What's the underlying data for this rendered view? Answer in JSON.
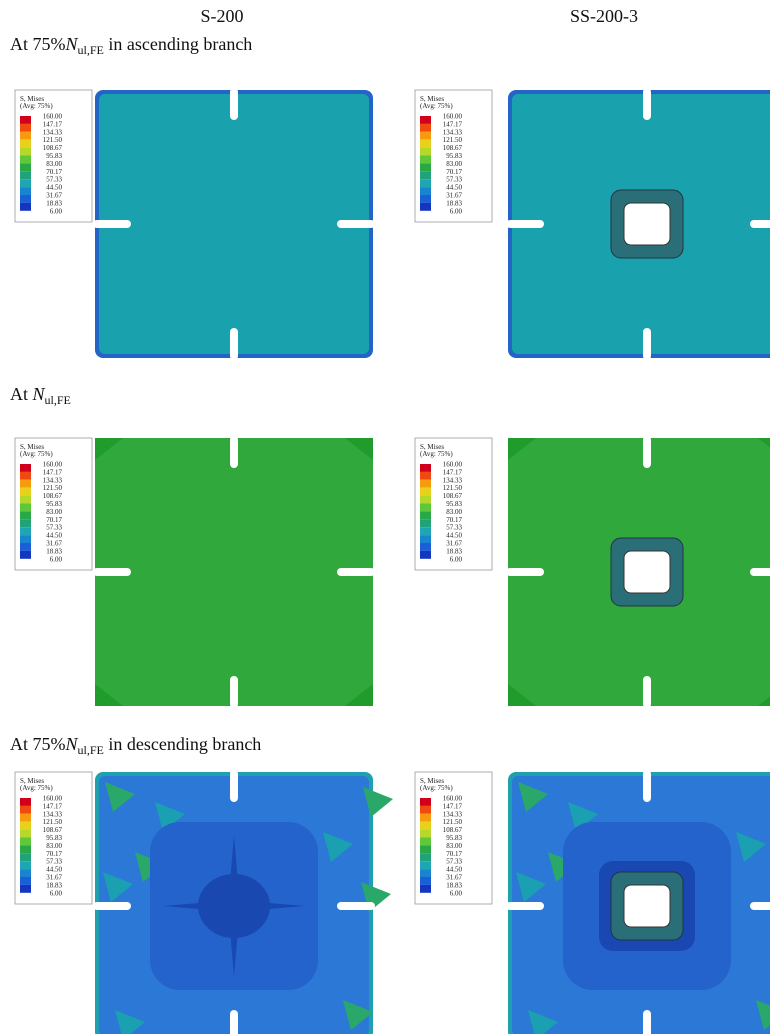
{
  "columns": [
    "S-200",
    "SS-200-3"
  ],
  "rows": [
    {
      "prefix": "At 75%",
      "symbol": "N",
      "subscript": "ul,FE",
      "suffix": " in ascending branch"
    },
    {
      "prefix": "At ",
      "symbol": "N",
      "subscript": "ul,FE"
    },
    {
      "prefix": "At 75%",
      "symbol": "N",
      "subscript": "ul,FE",
      "suffix": " in descending branch"
    }
  ],
  "legend": {
    "title": "S, Mises",
    "subtitle": "(Avg: 75%)",
    "levels": [
      "160.00",
      "147.17",
      "134.33",
      "121.50",
      "108.67",
      "95.83",
      "83.00",
      "70.17",
      "57.33",
      "44.50",
      "31.67",
      "18.83",
      "6.00"
    ]
  }
}
